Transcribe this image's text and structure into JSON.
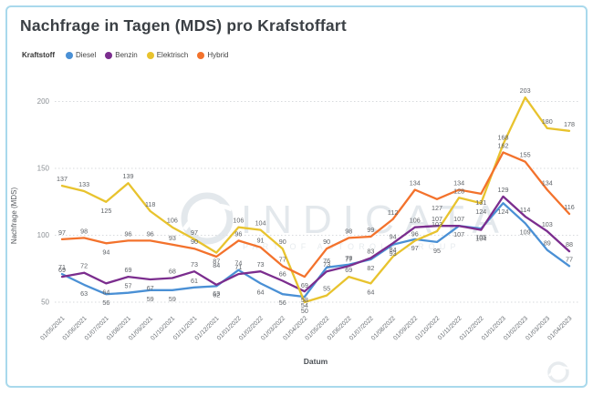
{
  "frame": {
    "border_color": "#a9d9ec"
  },
  "header": {
    "title": "Nachfrage in Tagen (MDS) pro Krafstoffart"
  },
  "legend": {
    "title": "Kraftstoff",
    "items": [
      {
        "label": "Diesel",
        "color": "#4a90d5"
      },
      {
        "label": "Benzin",
        "color": "#7b2d8e"
      },
      {
        "label": "Elektrisch",
        "color": "#e8c32e"
      },
      {
        "label": "Hybrid",
        "color": "#f3722c"
      }
    ]
  },
  "watermark": {
    "brand": "INDICATA",
    "tagline": "PART OF AUTOROLA GROUP"
  },
  "chart_data": {
    "type": "line",
    "title": "Nachfrage in Tagen (MDS) pro Krafstoffart",
    "xlabel": "Datum",
    "ylabel": "Nachfrage (MDS)",
    "grid": "horizontal dotted",
    "legend_position": "top-left",
    "ylim": [
      40,
      215
    ],
    "y_ticks": [
      50,
      100,
      150,
      200
    ],
    "categories": [
      "01/05/2021",
      "01/06/2021",
      "01/07/2021",
      "01/08/2021",
      "01/09/2021",
      "01/10/2021",
      "01/11/2021",
      "01/12/2021",
      "01/01/2022",
      "01/02/2022",
      "01/03/2022",
      "01/04/2022",
      "01/05/2022",
      "01/06/2022",
      "01/07/2022",
      "01/08/2022",
      "01/09/2022",
      "01/10/2022",
      "01/11/2022",
      "01/12/2022",
      "01/01/2023",
      "01/02/2023",
      "01/03/2023",
      "01/04/2023"
    ],
    "series": [
      {
        "name": "Diesel",
        "color": "#4a90d5",
        "values": [
          71,
          63,
          56,
          57,
          59,
          59,
          61,
          62,
          74,
          64,
          56,
          54,
          76,
          78,
          82,
          93,
          97,
          95,
          107,
          105,
          124,
          109,
          89,
          77
        ]
      },
      {
        "name": "Benzin",
        "color": "#7b2d8e",
        "values": [
          69,
          72,
          64,
          69,
          67,
          68,
          73,
          63,
          71,
          73,
          66,
          58,
          73,
          77,
          83,
          94,
          106,
          107,
          107,
          104,
          129,
          114,
          103,
          88
        ]
      },
      {
        "name": "Elektrisch",
        "color": "#e8c32e",
        "values": [
          137,
          133,
          125,
          139,
          118,
          106,
          97,
          87,
          106,
          104,
          90,
          50,
          55,
          69,
          64,
          84,
          96,
          103,
          128,
          124,
          168,
          203,
          180,
          178
        ]
      },
      {
        "name": "Hybrid",
        "color": "#f3722c",
        "values": [
          97,
          98,
          94,
          96,
          96,
          93,
          90,
          84,
          96,
          91,
          77,
          69,
          90,
          98,
          99,
          112,
          134,
          127,
          134,
          131,
          162,
          155,
          134,
          116
        ]
      }
    ]
  }
}
